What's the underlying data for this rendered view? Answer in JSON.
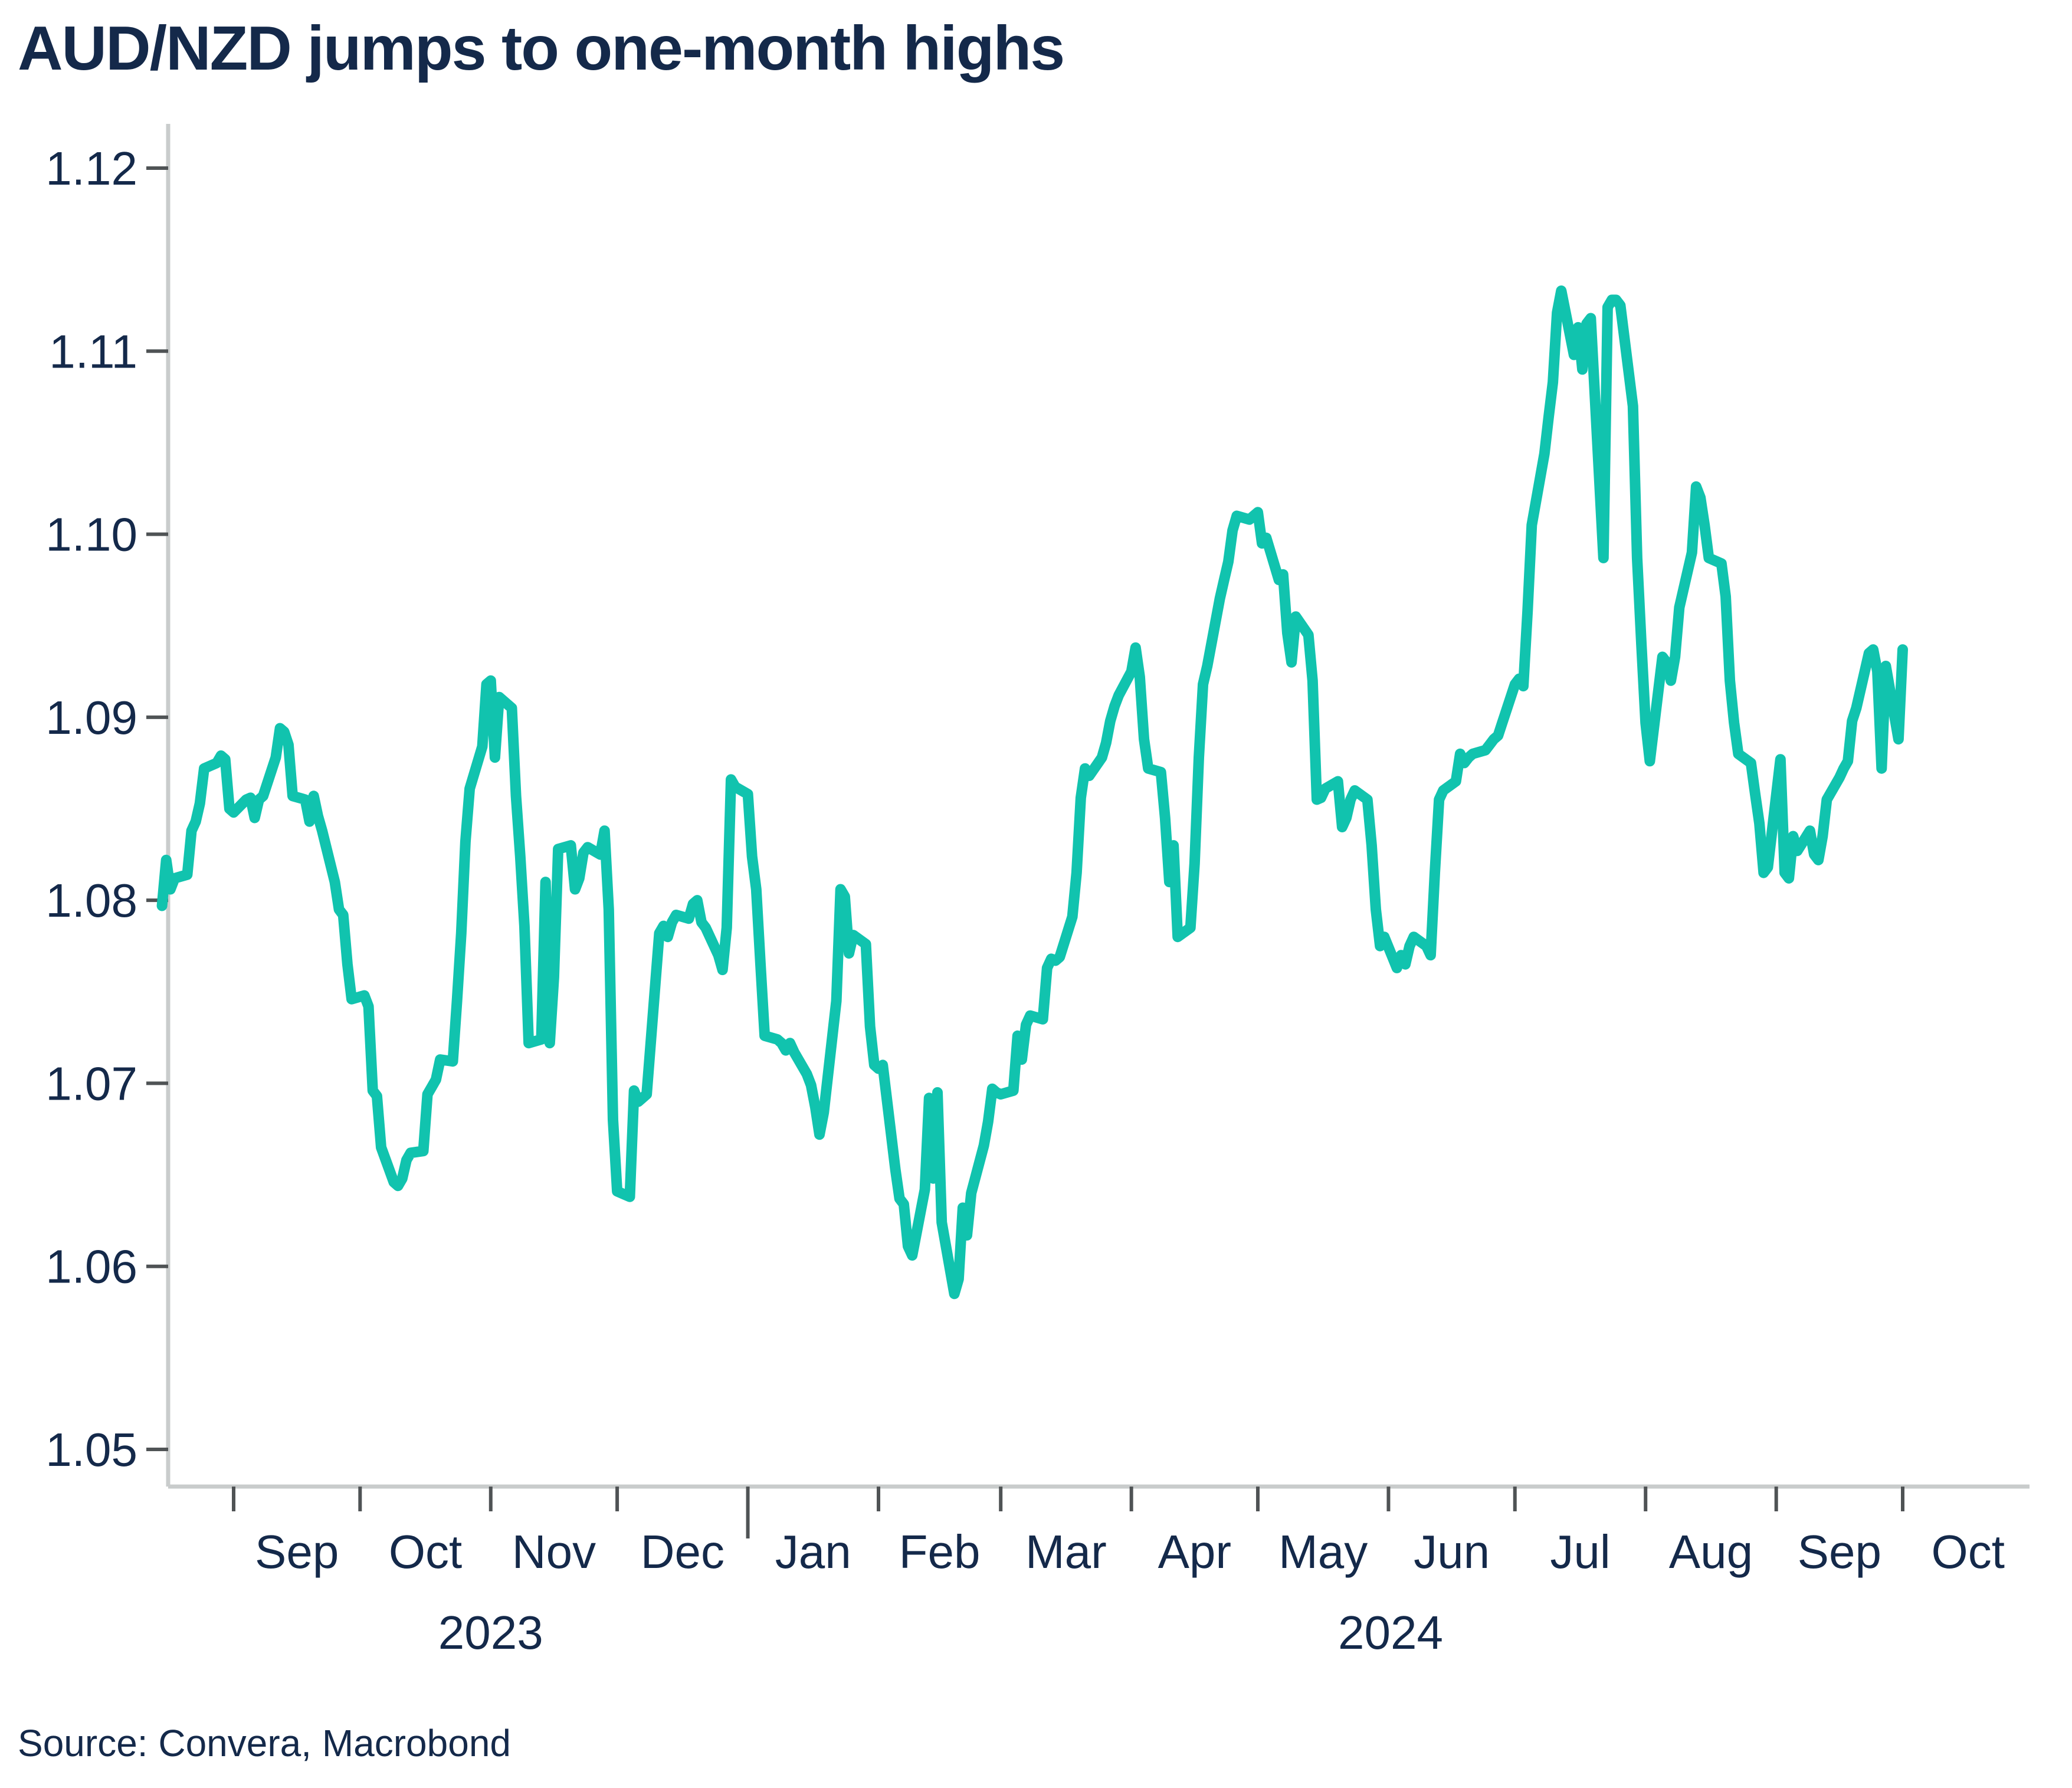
{
  "title": "AUD/NZD jumps to one-month highs",
  "source": "Source: Convera, Macrobond",
  "colors": {
    "line": "#11C3AE",
    "text": "#14294A",
    "axis_line": "#C9CCCC",
    "tick_mark": "#4F5355",
    "background": "#FFFFFF"
  },
  "chart_data": {
    "type": "line",
    "title": "AUD/NZD jumps to one-month highs",
    "xlabel": "",
    "ylabel": "",
    "ylim": [
      1.05,
      1.12
    ],
    "grid": false,
    "legend": "none",
    "y_tick_labels": [
      "1.05",
      "1.06",
      "1.07",
      "1.08",
      "1.09",
      "1.10",
      "1.11",
      "1.12"
    ],
    "x_tick_labels": [
      "Sep",
      "Oct",
      "Nov",
      "Dec",
      "Jan",
      "Feb",
      "Mar",
      "Apr",
      "May",
      "Jun",
      "Jul",
      "Aug",
      "Sep",
      "Oct"
    ],
    "year_labels": [
      "2023",
      "2024"
    ],
    "frequency": "business-daily",
    "start_date": "2023-08-15",
    "end_date": "2024-10-01",
    "series": [
      {
        "name": "AUD/NZD",
        "values": [
          1.0797,
          1.0822,
          1.0806,
          1.0812,
          1.0814,
          1.0838,
          1.0843,
          1.0853,
          1.0872,
          1.0875,
          1.0879,
          1.0877,
          1.085,
          1.0848,
          1.0855,
          1.0856,
          1.0845,
          1.0855,
          1.0857,
          1.0878,
          1.0894,
          1.0892,
          1.0885,
          1.0857,
          1.0855,
          1.0843,
          1.0857,
          1.0846,
          1.0838,
          1.081,
          1.0795,
          1.0792,
          1.0765,
          1.0746,
          1.0748,
          1.0742,
          1.0696,
          1.0693,
          1.0665,
          1.0646,
          1.0644,
          1.0648,
          1.0658,
          1.0662,
          1.0663,
          1.0694,
          1.0698,
          1.0702,
          1.0713,
          1.0712,
          1.0745,
          1.0782,
          1.0832,
          1.0861,
          1.0884,
          1.0918,
          1.092,
          1.0878,
          1.0911,
          1.0905,
          1.0857,
          1.0824,
          1.0786,
          1.0722,
          1.0724,
          1.081,
          1.0722,
          1.0758,
          1.0828,
          1.083,
          1.0806,
          1.0812,
          1.0826,
          1.0829,
          1.0825,
          1.0838,
          1.0795,
          1.068,
          1.0641,
          1.0638,
          1.0696,
          1.069,
          1.0692,
          1.0694,
          1.0782,
          1.0786,
          1.078,
          1.0788,
          1.0792,
          1.079,
          1.0798,
          1.08,
          1.0788,
          1.0785,
          1.077,
          1.0762,
          1.0785,
          1.0866,
          1.0862,
          1.0858,
          1.0824,
          1.0806,
          1.0765,
          1.0726,
          1.0724,
          1.0722,
          1.0718,
          1.0722,
          1.0717,
          1.0705,
          1.0699,
          1.0687,
          1.0672,
          1.0684,
          1.0745,
          1.0806,
          1.0802,
          1.0771,
          1.0781,
          1.0776,
          1.0731,
          1.071,
          1.0708,
          1.071,
          1.0653,
          1.0637,
          1.0634,
          1.0611,
          1.0606,
          1.0642,
          1.0692,
          1.0648,
          1.0695,
          1.0624,
          1.0585,
          1.0593,
          1.0632,
          1.0617,
          1.064,
          1.0666,
          1.0679,
          1.0697,
          1.0695,
          1.0694,
          1.0696,
          1.0726,
          1.0713,
          1.0732,
          1.0737,
          1.0735,
          1.0763,
          1.0768,
          1.0767,
          1.0769,
          1.0791,
          1.0815,
          1.0856,
          1.0872,
          1.0868,
          1.0878,
          1.0886,
          1.0898,
          1.0906,
          1.0912,
          1.0925,
          1.0938,
          1.0922,
          1.0888,
          1.0872,
          1.087,
          1.0845,
          1.081,
          1.083,
          1.078,
          1.0785,
          1.082,
          1.0878,
          1.0918,
          1.0928,
          1.0965,
          1.0975,
          1.0985,
          1.1002,
          1.101,
          1.1008,
          1.101,
          1.1012,
          1.0995,
          1.0998,
          1.0975,
          1.0978,
          1.0946,
          1.093,
          1.0955,
          1.0945,
          1.092,
          1.0855,
          1.0856,
          1.0861,
          1.0865,
          1.084,
          1.0845,
          1.0855,
          1.086,
          1.0855,
          1.083,
          1.0795,
          1.0775,
          1.078,
          1.0763,
          1.077,
          1.0765,
          1.0775,
          1.078,
          1.0775,
          1.077,
          1.0815,
          1.0855,
          1.086,
          1.0865,
          1.088,
          1.0875,
          1.0878,
          1.088,
          1.0882,
          1.0885,
          1.0888,
          1.089,
          1.0897,
          1.0918,
          1.0921,
          1.0917,
          1.0958,
          1.1005,
          1.1044,
          1.1064,
          1.1083,
          1.1121,
          1.1133,
          1.1098,
          1.1113,
          1.109,
          1.1115,
          1.1118,
          1.0987,
          1.1124,
          1.1128,
          1.1128,
          1.1125,
          1.107,
          1.0987,
          1.094,
          1.0897,
          1.0876,
          1.0933,
          1.093,
          1.092,
          1.0933,
          1.096,
          1.099,
          1.1026,
          1.102,
          1.1005,
          1.0987,
          1.0984,
          1.0966,
          1.092,
          1.0897,
          1.088,
          1.0875,
          1.0858,
          1.0842,
          1.0815,
          1.0818,
          1.0877,
          1.0815,
          1.0812,
          1.0835,
          1.0827,
          1.0838,
          1.0825,
          1.0822,
          1.0835,
          1.0855,
          1.0867,
          1.0872,
          1.0876,
          1.0898,
          1.0905,
          1.0935,
          1.0937,
          1.0925,
          1.0872,
          1.0928,
          1.0888,
          1.0937
        ]
      }
    ]
  }
}
